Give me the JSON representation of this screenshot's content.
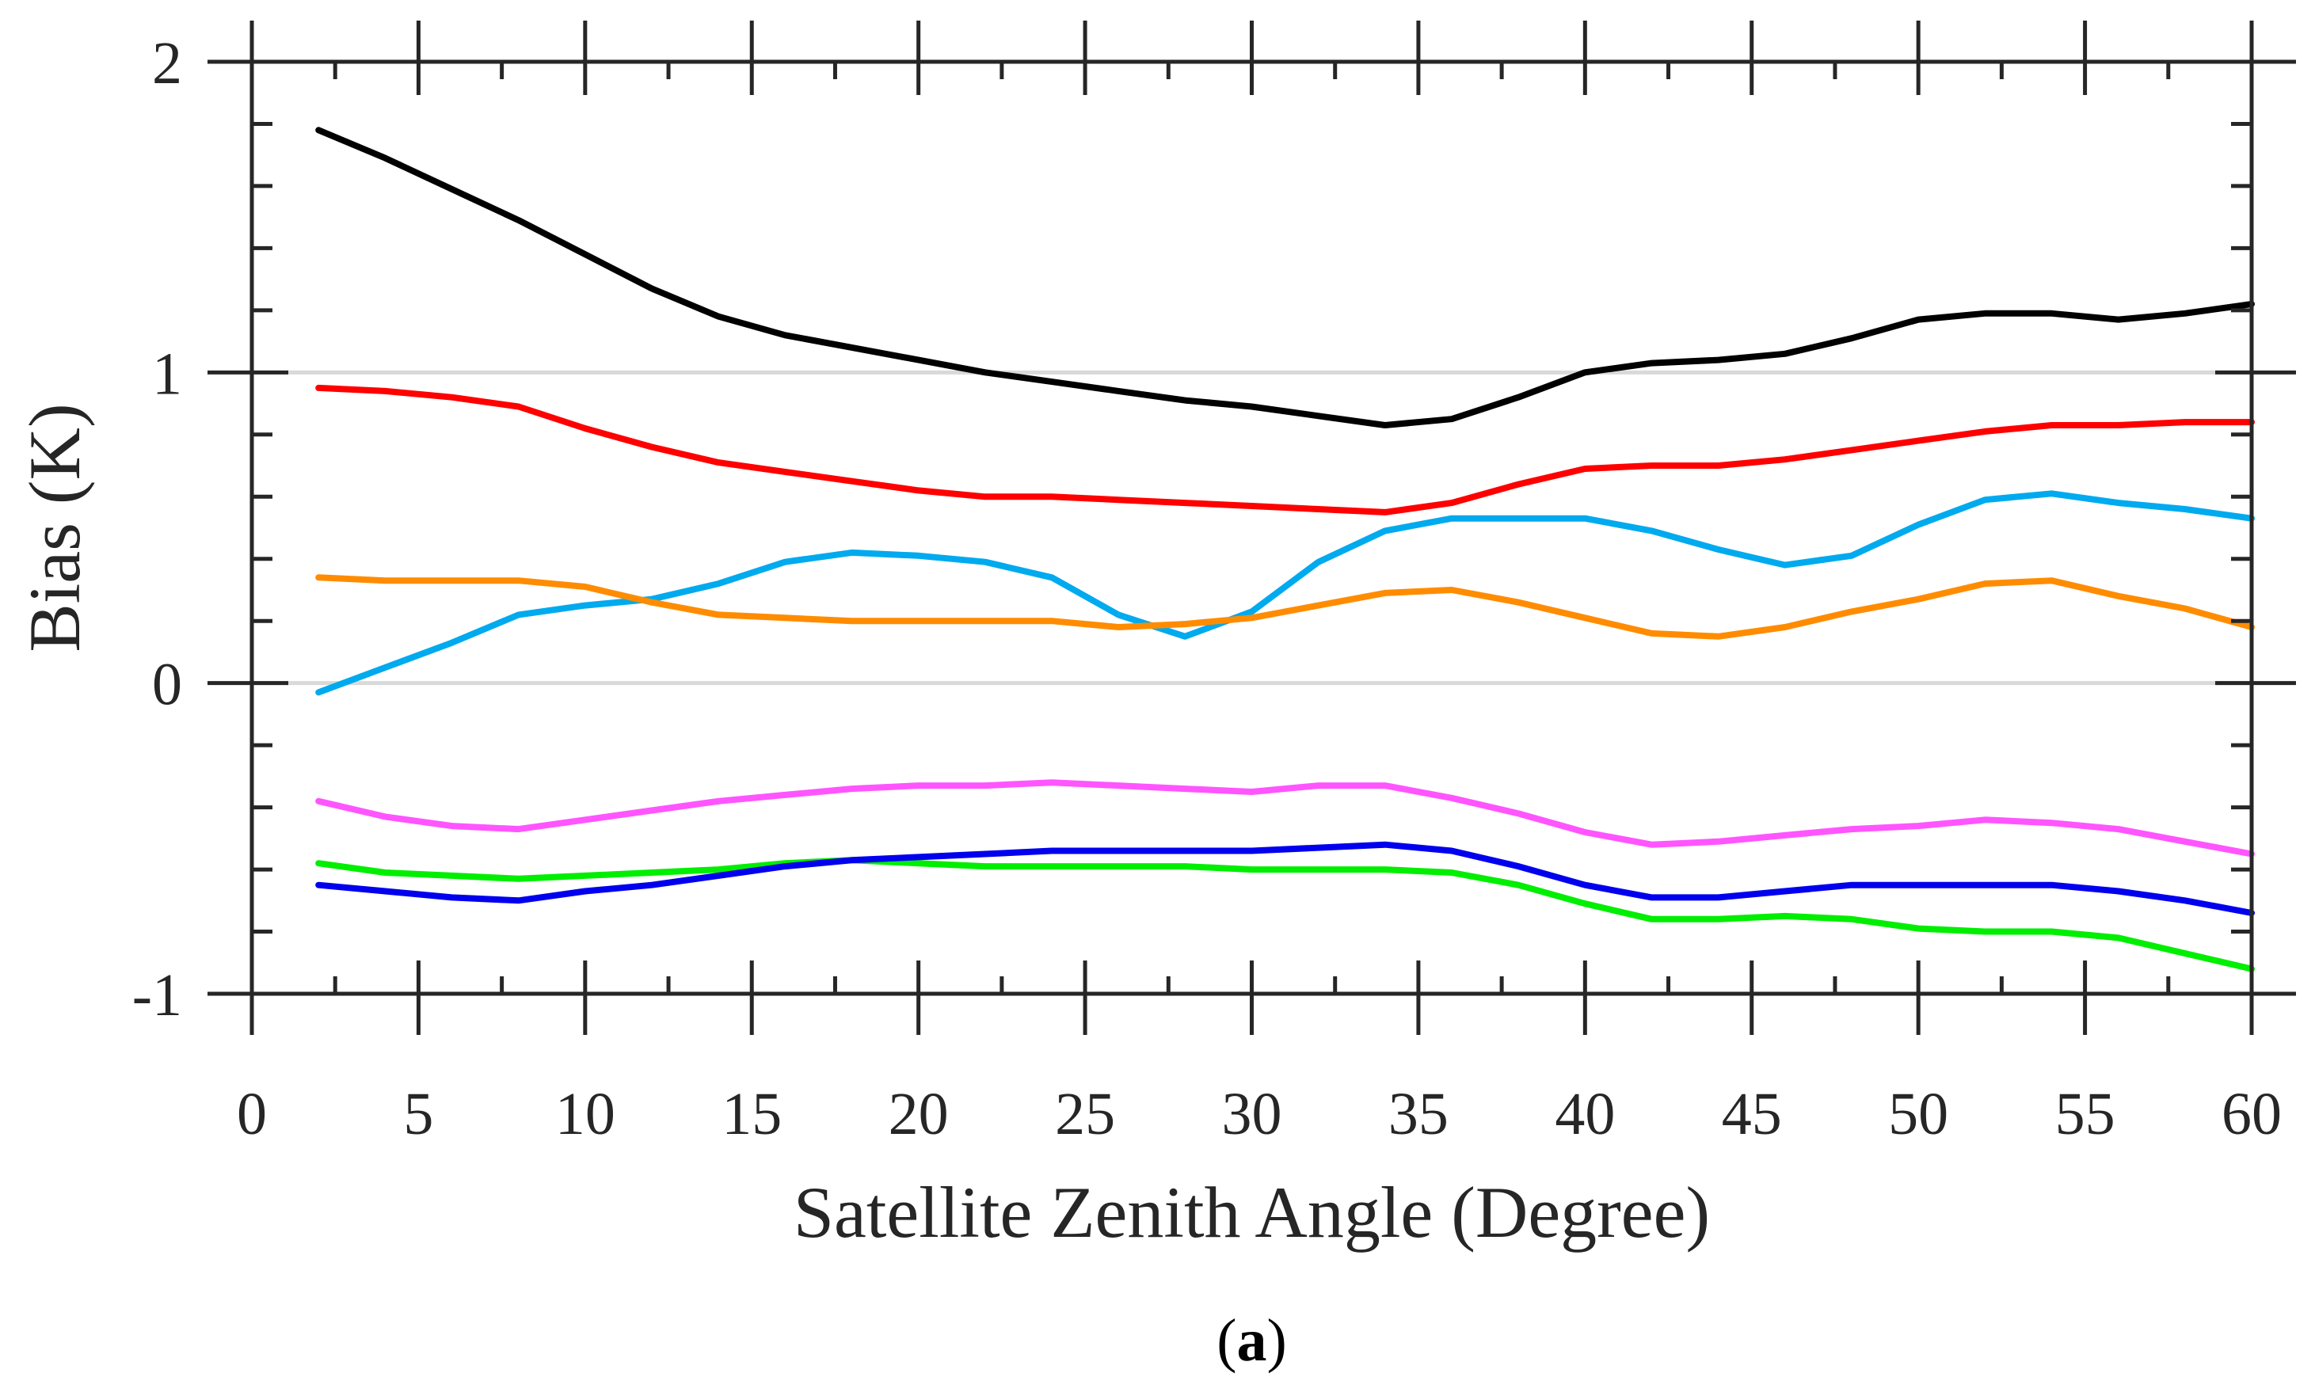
{
  "chart_data": {
    "type": "line",
    "title": "",
    "xlabel": "Satellite Zenith Angle (Degree)",
    "ylabel": "Bias (K)",
    "xlim": [
      0,
      60
    ],
    "ylim": [
      -1,
      2
    ],
    "xticks": [
      0,
      5,
      10,
      15,
      20,
      25,
      30,
      35,
      40,
      45,
      50,
      55,
      60
    ],
    "xtick_labels": [
      "0",
      "5",
      "10",
      "15",
      "20",
      "25",
      "30",
      "35",
      "40",
      "45",
      "50",
      "55",
      "60"
    ],
    "yticks": [
      -1,
      0,
      1,
      2
    ],
    "ytick_labels": [
      "-1",
      "0",
      "1",
      "2"
    ],
    "reference_lines": [
      0,
      1
    ],
    "panel_label": {
      "open": "(",
      "letter": "a",
      "close": ")"
    },
    "x": [
      2,
      4,
      6,
      8,
      10,
      12,
      14,
      16,
      18,
      20,
      22,
      24,
      26,
      28,
      30,
      32,
      34,
      36,
      38,
      40,
      42,
      44,
      46,
      48,
      50,
      52,
      54,
      56,
      58,
      60
    ],
    "series": [
      {
        "name": "black",
        "color": "#000000",
        "values": [
          1.78,
          1.69,
          1.59,
          1.49,
          1.38,
          1.27,
          1.18,
          1.12,
          1.08,
          1.04,
          1.0,
          0.97,
          0.94,
          0.91,
          0.89,
          0.86,
          0.83,
          0.85,
          0.92,
          1.0,
          1.03,
          1.04,
          1.06,
          1.11,
          1.17,
          1.19,
          1.19,
          1.17,
          1.19,
          1.22
        ]
      },
      {
        "name": "red",
        "color": "#ff0000",
        "values": [
          0.95,
          0.94,
          0.92,
          0.89,
          0.82,
          0.76,
          0.71,
          0.68,
          0.65,
          0.62,
          0.6,
          0.6,
          0.59,
          0.58,
          0.57,
          0.56,
          0.55,
          0.58,
          0.64,
          0.69,
          0.7,
          0.7,
          0.72,
          0.75,
          0.78,
          0.81,
          0.83,
          0.83,
          0.84,
          0.84
        ]
      },
      {
        "name": "cyan",
        "color": "#00aaee",
        "values": [
          -0.03,
          0.05,
          0.13,
          0.22,
          0.25,
          0.27,
          0.32,
          0.39,
          0.42,
          0.41,
          0.39,
          0.34,
          0.22,
          0.15,
          0.23,
          0.39,
          0.49,
          0.53,
          0.53,
          0.53,
          0.49,
          0.43,
          0.38,
          0.41,
          0.51,
          0.59,
          0.61,
          0.58,
          0.56,
          0.53
        ]
      },
      {
        "name": "orange",
        "color": "#ff8c00",
        "values": [
          0.34,
          0.33,
          0.33,
          0.33,
          0.31,
          0.26,
          0.22,
          0.21,
          0.2,
          0.2,
          0.2,
          0.2,
          0.18,
          0.19,
          0.21,
          0.25,
          0.29,
          0.3,
          0.26,
          0.21,
          0.16,
          0.15,
          0.18,
          0.23,
          0.27,
          0.32,
          0.33,
          0.28,
          0.24,
          0.18
        ]
      },
      {
        "name": "magenta",
        "color": "#ff55ff",
        "values": [
          -0.38,
          -0.43,
          -0.46,
          -0.47,
          -0.44,
          -0.41,
          -0.38,
          -0.36,
          -0.34,
          -0.33,
          -0.33,
          -0.32,
          -0.33,
          -0.34,
          -0.35,
          -0.33,
          -0.33,
          -0.37,
          -0.42,
          -0.48,
          -0.52,
          -0.51,
          -0.49,
          -0.47,
          -0.46,
          -0.44,
          -0.45,
          -0.47,
          -0.51,
          -0.55
        ]
      },
      {
        "name": "green",
        "color": "#00ee00",
        "values": [
          -0.58,
          -0.61,
          -0.62,
          -0.63,
          -0.62,
          -0.61,
          -0.6,
          -0.58,
          -0.57,
          -0.58,
          -0.59,
          -0.59,
          -0.59,
          -0.59,
          -0.6,
          -0.6,
          -0.6,
          -0.61,
          -0.65,
          -0.71,
          -0.76,
          -0.76,
          -0.75,
          -0.76,
          -0.79,
          -0.8,
          -0.8,
          -0.82,
          -0.87,
          -0.92
        ]
      },
      {
        "name": "blue",
        "color": "#0000ee",
        "values": [
          -0.65,
          -0.67,
          -0.69,
          -0.7,
          -0.67,
          -0.65,
          -0.62,
          -0.59,
          -0.57,
          -0.56,
          -0.55,
          -0.54,
          -0.54,
          -0.54,
          -0.54,
          -0.53,
          -0.52,
          -0.54,
          -0.59,
          -0.65,
          -0.69,
          -0.69,
          -0.67,
          -0.65,
          -0.65,
          -0.65,
          -0.65,
          -0.67,
          -0.7,
          -0.74
        ]
      }
    ]
  }
}
